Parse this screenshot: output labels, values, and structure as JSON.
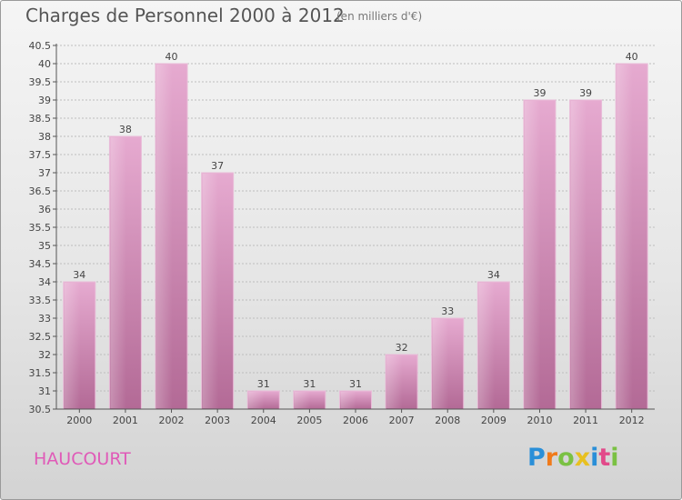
{
  "title": "Charges de Personnel 2000 à 2012",
  "subtitle": "(en milliers d'€)",
  "place_name": "HAUCOURT",
  "logo": {
    "letters": [
      "P",
      "r",
      "o",
      "x",
      "i",
      "t",
      "i"
    ],
    "colors": [
      "#2a8fd8",
      "#f07a1a",
      "#7ac143",
      "#e8c020",
      "#2a8fd8",
      "#e24a8a",
      "#7ac143"
    ]
  },
  "colors": {
    "bar": "#c97aa6",
    "bar_light": "#e4a8cc",
    "axis": "#555555",
    "grid": "#bdbdbd"
  },
  "chart_data": {
    "type": "bar",
    "title": "Charges de Personnel 2000 à 2012",
    "subtitle": "(en milliers d'€)",
    "categories": [
      "2000",
      "2001",
      "2002",
      "2003",
      "2004",
      "2005",
      "2006",
      "2007",
      "2008",
      "2009",
      "2010",
      "2011",
      "2012"
    ],
    "values": [
      34,
      38,
      40,
      37,
      31,
      31,
      31,
      32,
      33,
      34,
      39,
      39,
      40
    ],
    "value_labels": [
      "34",
      "38",
      "40",
      "37",
      "31",
      "31",
      "31",
      "32",
      "33",
      "34",
      "39",
      "39",
      "40"
    ],
    "ylim": [
      30.5,
      40.5
    ],
    "yticks": [
      30.5,
      31,
      31.5,
      32,
      32.5,
      33,
      33.5,
      34,
      34.5,
      35,
      35.5,
      36,
      36.5,
      37,
      37.5,
      38,
      38.5,
      39,
      39.5,
      40,
      40.5
    ],
    "ytick_labels": [
      "30.5",
      "31",
      "31.5",
      "32",
      "32.5",
      "33",
      "33.5",
      "34",
      "34.5",
      "35",
      "35.5",
      "36",
      "36.5",
      "37",
      "37.5",
      "38",
      "38.5",
      "39",
      "39.5",
      "40",
      "40.5"
    ],
    "grid": true,
    "legend": "none"
  }
}
